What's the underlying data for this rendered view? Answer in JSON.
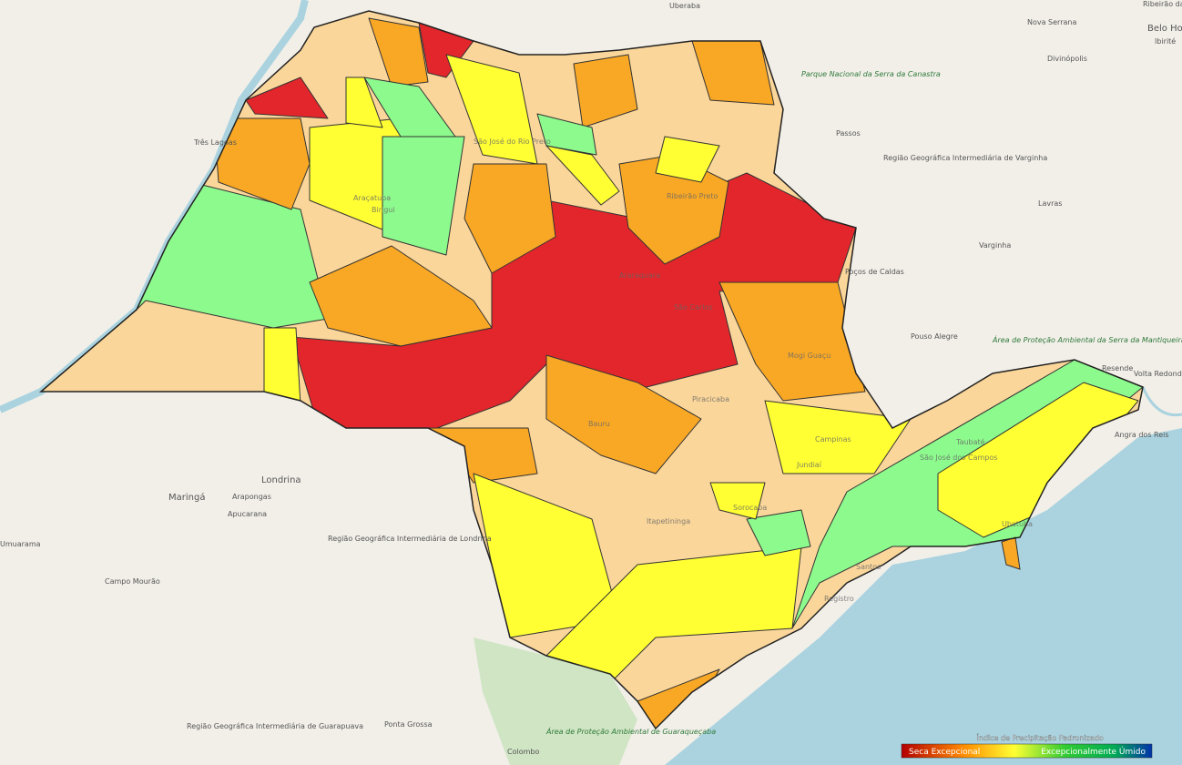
{
  "map_labels": {
    "outside": [
      "Uberaba",
      "Ribeirão das Neves",
      "Belo Hor",
      "Nova Serrana",
      "Divinópolis",
      "Ibirité",
      "Parque Nacional da Serra da Canastra",
      "Passos",
      "Região Geográfica Intermediária de Varginha",
      "Lavras",
      "Varginha",
      "Três Lagoas",
      "Poços de Caldas",
      "Pouso Alegre",
      "Área de Proteção Ambiental da Serra da Mantiqueira",
      "Resende",
      "Volta Redonda",
      "Angra dos Reis",
      "Londrina",
      "Maringá",
      "Arapongas",
      "Apucarana",
      "Região Geográfica Intermediária de Londrina",
      "Campo Mourão",
      "Umuarama",
      "Ponta Grossa",
      "Colombo",
      "Região Geográfica Intermediária de Guarapuava",
      "Área de Proteção Ambiental de Guaraqueçaba"
    ],
    "inside": [
      "Ribeirão Preto",
      "Araçatuba",
      "Birigui",
      "São José do Rio Preto",
      "Araraquara",
      "São Carlos",
      "Piracicaba",
      "Jundiaí",
      "Sorocaba",
      "Santos",
      "São José dos Campos",
      "Taubaté",
      "Mogi Guaçu",
      "Bauru",
      "Itapetininga",
      "Registro",
      "Ubatuba",
      "Campinas"
    ]
  },
  "legend": {
    "title": "Índice de Precipitação Padronizado",
    "low": "Seca Excepcional",
    "high": "Excepcionalmente Úmido"
  }
}
